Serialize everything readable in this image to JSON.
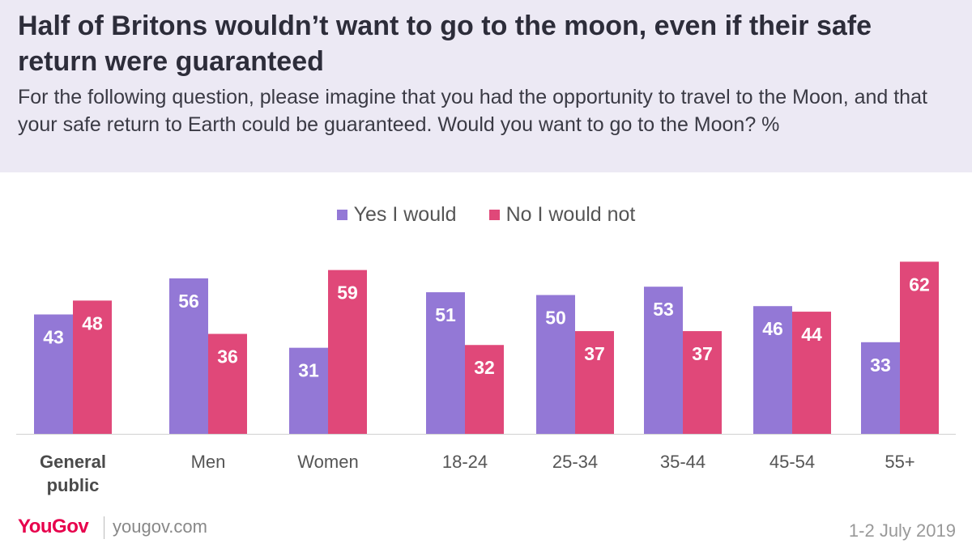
{
  "title": "Half of Britons wouldn’t want to go to the moon, even if their safe return were guaranteed",
  "subtitle": "For the following question, please imagine that you had the opportunity to travel to the Moon, and that your safe return to Earth could be guaranteed. Would you want to go to the Moon? %",
  "colors": {
    "yes": "#9378d6",
    "no": "#e04879",
    "header_bg": "#ece9f4"
  },
  "legend": {
    "yes_label": "Yes I would",
    "no_label": "No I would not"
  },
  "chart_data": {
    "type": "bar",
    "title": "Half of Britons wouldn’t want to go to the moon, even if their safe return were guaranteed",
    "ylabel": "%",
    "ylim": [
      0,
      62
    ],
    "categories": [
      "General\npublic",
      "Men",
      "Women",
      "18-24",
      "25-34",
      "35-44",
      "45-54",
      "55+"
    ],
    "series": [
      {
        "name": "Yes I would",
        "values": [
          43,
          56,
          31,
          51,
          50,
          53,
          46,
          33
        ]
      },
      {
        "name": "No I would not",
        "values": [
          48,
          36,
          59,
          32,
          37,
          37,
          44,
          62
        ]
      }
    ]
  },
  "footer": {
    "brand": "YouGov",
    "url": "yougov.com",
    "date": "1-2 July 2019"
  }
}
